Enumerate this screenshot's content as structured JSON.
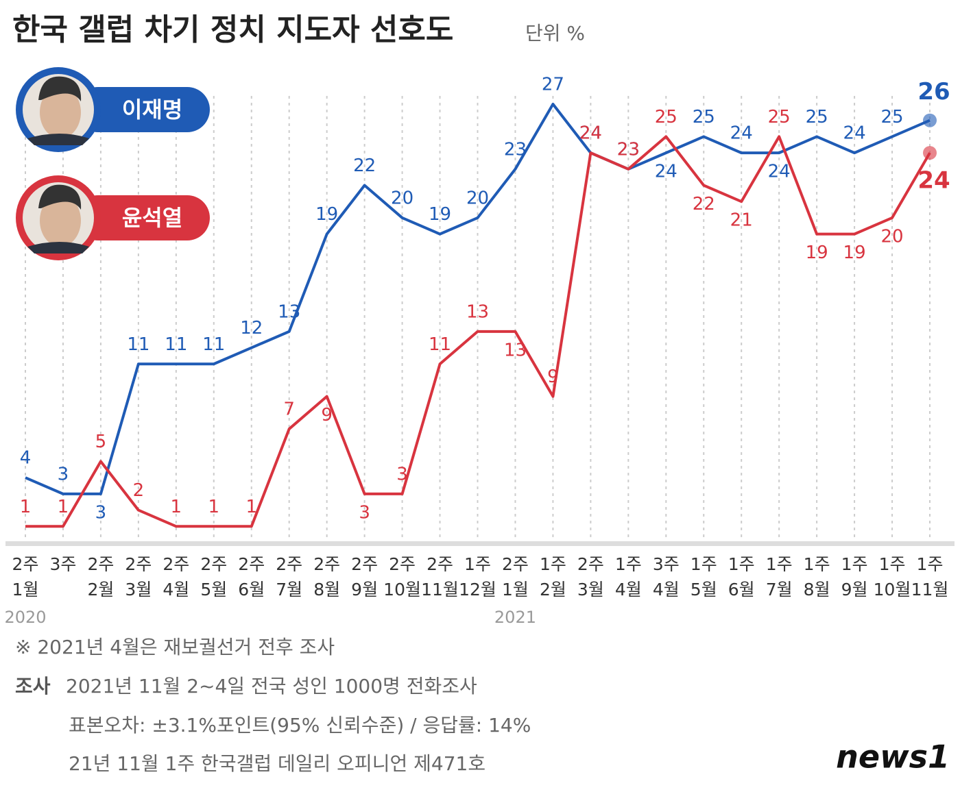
{
  "chart_data": {
    "type": "line",
    "title": "한국 갤럽 차기 정치 지도자 선호도",
    "unit": "단위 %",
    "categories": [
      [
        "2주",
        "1월"
      ],
      [
        "3주",
        null
      ],
      [
        "2주",
        "2월"
      ],
      [
        "2주",
        "3월"
      ],
      [
        "2주",
        "4월"
      ],
      [
        "2주",
        "5월"
      ],
      [
        "2주",
        "6월"
      ],
      [
        "2주",
        "7월"
      ],
      [
        "2주",
        "8월"
      ],
      [
        "2주",
        "9월"
      ],
      [
        "2주",
        "10월"
      ],
      [
        "2주",
        "11월"
      ],
      [
        "1주",
        "12월"
      ],
      [
        "2주",
        "1월"
      ],
      [
        "1주",
        "2월"
      ],
      [
        "2주",
        "3월"
      ],
      [
        "1주",
        "4월"
      ],
      [
        "3주",
        "4월"
      ],
      [
        "1주",
        "5월"
      ],
      [
        "1주",
        "6월"
      ],
      [
        "1주",
        "7월"
      ],
      [
        "1주",
        "8월"
      ],
      [
        "1주",
        "9월"
      ],
      [
        "1주",
        "10월"
      ],
      [
        "1주",
        "11월"
      ]
    ],
    "category_years": [
      "2020",
      null,
      null,
      null,
      null,
      null,
      null,
      null,
      null,
      null,
      null,
      null,
      null,
      "2021",
      null,
      null,
      null,
      null,
      null,
      null,
      null,
      null,
      null,
      null,
      null
    ],
    "series": [
      {
        "name": "이재명",
        "color": "#1f5bb5",
        "values": [
          4,
          3,
          3,
          11,
          11,
          11,
          12,
          13,
          19,
          22,
          20,
          19,
          20,
          23,
          27,
          24,
          23,
          24,
          25,
          24,
          24,
          25,
          24,
          25,
          26
        ]
      },
      {
        "name": "윤석열",
        "color": "#d8343f",
        "values": [
          1,
          1,
          5,
          2,
          1,
          1,
          1,
          7,
          9,
          3,
          3,
          11,
          13,
          13,
          9,
          24,
          23,
          25,
          22,
          21,
          25,
          19,
          19,
          20,
          24
        ]
      }
    ],
    "ylim": [
      0,
      27
    ],
    "notes": [
      "※  2021년 4월은 재보궐선거 전후 조사"
    ],
    "source_label": "조사",
    "source_lines": [
      "2021년 11월 2~4일 전국 성인 1000명 전화조사",
      "표본오차: ±3.1%포인트(95% 신뢰수준) / 응답률: 14%",
      "21년 11월 1주 한국갤럽 데일리 오피니언 제471호"
    ],
    "logo": "news1"
  }
}
